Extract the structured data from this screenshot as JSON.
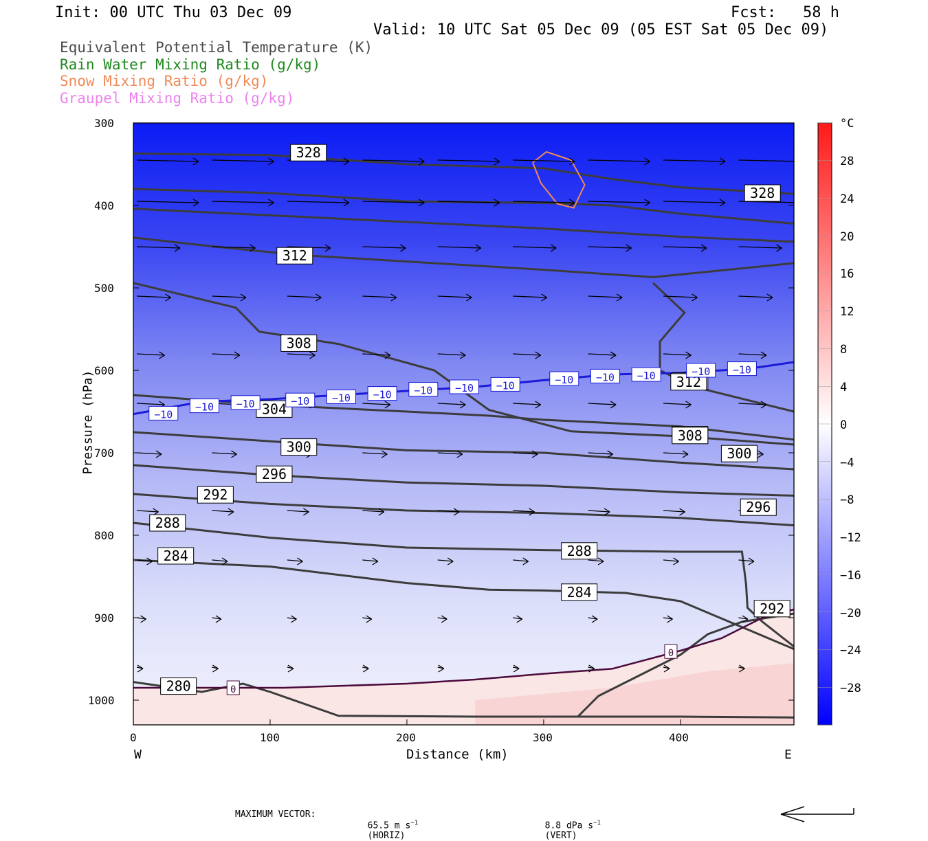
{
  "header": {
    "init": "Init: 00 UTC Thu 03 Dec 09",
    "fcst_label": "Fcst:",
    "fcst_value": "58 h",
    "valid": "Valid: 10 UTC Sat 05 Dec 09 (05 EST Sat 05 Dec 09)"
  },
  "legend": [
    {
      "text": "Equivalent Potential Temperature (K)",
      "color": "#4a4a4a"
    },
    {
      "text": "Rain Water Mixing Ratio (g/kg)",
      "color": "#1f8a1f"
    },
    {
      "text": "Snow Mixing Ratio (g/kg)",
      "color": "#f08a58"
    },
    {
      "text": "Graupel Mixing Ratio (g/kg)",
      "color": "#ee82ee"
    }
  ],
  "chart_data": {
    "type": "cross-section",
    "ylabel": "Pressure (hPa)",
    "xlabel": "Distance (km)",
    "xlim": [
      0,
      483
    ],
    "ylim": [
      1030,
      300
    ],
    "y_ticks": [
      "300",
      "400",
      "500",
      "600",
      "700",
      "800",
      "900",
      "1000"
    ],
    "x_ticks": [
      "0",
      "100",
      "200",
      "300",
      "400"
    ],
    "x_end_labels": {
      "left": "W",
      "right": "E"
    },
    "colorbar": {
      "unit": "°C",
      "labels": [
        "28",
        "24",
        "20",
        "16",
        "12",
        "8",
        "4",
        "0",
        "−4",
        "−8",
        "−12",
        "−16",
        "−20",
        "−24",
        "−28"
      ],
      "label_values": [
        28,
        24,
        20,
        16,
        12,
        8,
        4,
        0,
        -4,
        -8,
        -12,
        -16,
        -20,
        -24,
        -28
      ],
      "range": [
        -32,
        32
      ],
      "cold_color": "#0000ff",
      "neutral_color": "#ffffff",
      "warm_color": "#ff1a1a"
    },
    "theta_e_contours": [
      {
        "label": "328",
        "points": [
          [
            0,
            337
          ],
          [
            100,
            339
          ],
          [
            200,
            350
          ],
          [
            300,
            355
          ],
          [
            350,
            368
          ],
          [
            400,
            378
          ],
          [
            483,
            386
          ]
        ]
      },
      {
        "label": "",
        "points": [
          [
            0,
            380
          ],
          [
            100,
            385
          ],
          [
            200,
            395
          ],
          [
            300,
            397
          ],
          [
            350,
            400
          ],
          [
            400,
            410
          ],
          [
            483,
            422
          ]
        ]
      },
      {
        "label": "",
        "points": [
          [
            0,
            404
          ],
          [
            100,
            412
          ],
          [
            200,
            420
          ],
          [
            300,
            428
          ],
          [
            350,
            433
          ],
          [
            400,
            438
          ],
          [
            483,
            444
          ]
        ]
      },
      {
        "label": "312",
        "points": [
          [
            0,
            439
          ],
          [
            60,
            450
          ],
          [
            120,
            460
          ],
          [
            200,
            468
          ],
          [
            300,
            478
          ],
          [
            380,
            487
          ],
          [
            483,
            470
          ]
        ]
      },
      {
        "label": "308",
        "points": [
          [
            0,
            494
          ],
          [
            75,
            524
          ],
          [
            92,
            553
          ],
          [
            150,
            568
          ],
          [
            220,
            600
          ],
          [
            260,
            648
          ],
          [
            320,
            674
          ],
          [
            400,
            680
          ],
          [
            483,
            690
          ]
        ]
      },
      {
        "label": "304",
        "points": [
          [
            0,
            630
          ],
          [
            100,
            642
          ],
          [
            200,
            650
          ],
          [
            260,
            655
          ],
          [
            300,
            660
          ],
          [
            400,
            668
          ],
          [
            483,
            684
          ]
        ]
      },
      {
        "label": "300",
        "points": [
          [
            0,
            675
          ],
          [
            100,
            686
          ],
          [
            200,
            697
          ],
          [
            300,
            700
          ],
          [
            400,
            712
          ],
          [
            483,
            720
          ]
        ]
      },
      {
        "label": "296",
        "points": [
          [
            0,
            715
          ],
          [
            100,
            727
          ],
          [
            200,
            736
          ],
          [
            300,
            740
          ],
          [
            400,
            748
          ],
          [
            483,
            752
          ]
        ]
      },
      {
        "label": "292",
        "points": [
          [
            0,
            750
          ],
          [
            100,
            762
          ],
          [
            200,
            770
          ],
          [
            300,
            773
          ],
          [
            400,
            779
          ],
          [
            483,
            788
          ]
        ]
      },
      {
        "label": "288",
        "points": [
          [
            0,
            785
          ],
          [
            100,
            803
          ],
          [
            200,
            815
          ],
          [
            300,
            818
          ],
          [
            400,
            820
          ],
          [
            445,
            820
          ],
          [
            448,
            860
          ],
          [
            449,
            888
          ],
          [
            460,
            905
          ],
          [
            483,
            935
          ]
        ]
      },
      {
        "label": "284",
        "points": [
          [
            0,
            830
          ],
          [
            100,
            838
          ],
          [
            200,
            858
          ],
          [
            260,
            866
          ],
          [
            300,
            867
          ],
          [
            360,
            870
          ],
          [
            400,
            880
          ],
          [
            443,
            910
          ],
          [
            483,
            938
          ]
        ]
      },
      {
        "label": "280",
        "points": [
          [
            0,
            978
          ],
          [
            50,
            990
          ],
          [
            80,
            980
          ],
          [
            100,
            990
          ],
          [
            150,
            1019
          ],
          [
            250,
            1020
          ],
          [
            400,
            1020
          ],
          [
            483,
            1021
          ]
        ]
      }
    ],
    "theta_e_312_branch": [
      [
        380,
        494
      ],
      [
        403,
        530
      ],
      [
        385,
        565
      ],
      [
        385,
        600
      ],
      [
        410,
        620
      ],
      [
        483,
        650
      ]
    ],
    "warm_theta_e_line": [
      [
        325,
        1020
      ],
      [
        340,
        995
      ],
      [
        370,
        970
      ],
      [
        400,
        945
      ],
      [
        420,
        920
      ],
      [
        445,
        905
      ],
      [
        483,
        895
      ]
    ],
    "isotherm_minus10": {
      "label": "−10",
      "points": [
        [
          0,
          653
        ],
        [
          50,
          638
        ],
        [
          100,
          635
        ],
        [
          150,
          630
        ],
        [
          200,
          625
        ],
        [
          250,
          620
        ],
        [
          300,
          612
        ],
        [
          350,
          605
        ],
        [
          400,
          603
        ],
        [
          450,
          598
        ],
        [
          483,
          590
        ]
      ]
    },
    "isotherm_zero": {
      "label": "0",
      "points": [
        [
          0,
          985
        ],
        [
          70,
          985
        ],
        [
          110,
          985
        ],
        [
          200,
          980
        ],
        [
          250,
          975
        ],
        [
          300,
          968
        ],
        [
          350,
          962
        ],
        [
          400,
          940
        ],
        [
          430,
          925
        ],
        [
          460,
          900
        ],
        [
          483,
          890
        ]
      ]
    },
    "snow_contour": [
      [
        292,
        348
      ],
      [
        302,
        335
      ],
      [
        320,
        345
      ],
      [
        330,
        375
      ],
      [
        322,
        403
      ],
      [
        310,
        398
      ],
      [
        298,
        373
      ],
      [
        292,
        348
      ]
    ],
    "wind_vectors": [
      {
        "p": 345,
        "u": 1.0
      },
      {
        "p": 395,
        "u": 1.0
      },
      {
        "p": 450,
        "u": 0.7
      },
      {
        "p": 510,
        "u": 0.55
      },
      {
        "p": 580,
        "u": 0.45
      },
      {
        "p": 640,
        "u": 0.45
      },
      {
        "p": 700,
        "u": 0.4
      },
      {
        "p": 770,
        "u": 0.35
      },
      {
        "p": 830,
        "u": 0.25
      },
      {
        "p": 900,
        "u": 0.15
      },
      {
        "p": 960,
        "u": 0.1
      }
    ],
    "max_vector": {
      "label": "MAXIMUM VECTOR:",
      "horiz": "65.5 m s",
      "horiz_suffix": "(HORIZ)",
      "vert": "8.8 dPa s",
      "vert_suffix": "(VERT)",
      "exponent": "−1"
    }
  }
}
